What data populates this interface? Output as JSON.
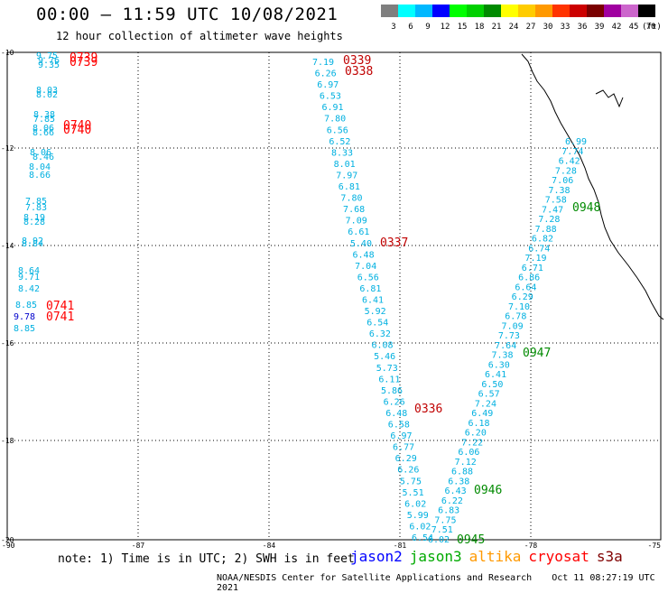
{
  "header": {
    "title": "00:00 – 11:59 UTC 10/08/2021",
    "subtitle": "12 hour collection of altimeter wave heights"
  },
  "color_scale": {
    "unit": "(ft)",
    "colors": [
      "#7f7f7f",
      "#00ffff",
      "#00b8ff",
      "#0000ff",
      "#00ff00",
      "#00d000",
      "#008a00",
      "#ffff00",
      "#ffcc00",
      "#ff9900",
      "#ff3300",
      "#cc0000",
      "#7a0000",
      "#a000a0",
      "#cc66cc",
      "#000000"
    ],
    "labels": [
      "3",
      "6",
      "9",
      "12",
      "15",
      "18",
      "21",
      "24",
      "27",
      "30",
      "33",
      "36",
      "39",
      "42",
      "45",
      "70"
    ]
  },
  "axes": {
    "x_ticks": [
      "-90",
      "-87",
      "-84",
      "-81",
      "-78",
      "-75"
    ],
    "y_ticks": [
      "-10",
      "-12",
      "-14",
      "-16",
      "-18",
      "-20"
    ]
  },
  "tracks": [
    {
      "sat": "cryosat",
      "color": "#c00000",
      "labels": [
        "0339",
        "0338",
        "0337",
        "0336"
      ]
    },
    {
      "sat": "jason3",
      "color": "#008a00",
      "labels": [
        "0948",
        "0947",
        "0946",
        "0945"
      ]
    },
    {
      "sat": "s3a",
      "color": "#ff0000",
      "labels": [
        "0739",
        "0739",
        "0740",
        "0740",
        "0741",
        "0741"
      ]
    }
  ],
  "waves": {
    "left": [
      "9.75",
      "9.76",
      "9.35",
      "8.03",
      "8.02",
      "8.38",
      "7.85",
      "8.06",
      "8.66",
      "8.06",
      "8.46",
      "8.04",
      "8.66",
      "7.85",
      "7.83",
      "8.19",
      "8.28",
      "8.92",
      "8.84",
      "8.64",
      "9.71",
      "8.42",
      "8.85",
      "9.78",
      "8.85"
    ],
    "mid": [
      "7.19",
      "6.26",
      "6.97",
      "6.53",
      "6.91",
      "7.80",
      "6.56",
      "6.52",
      "8.33",
      "8.01",
      "7.97",
      "6.81",
      "7.80",
      "7.68",
      "7.09",
      "6.61",
      "5.40",
      "6.48",
      "7.04",
      "6.56",
      "6.81",
      "6.41",
      "5.92",
      "6.54",
      "6.32",
      "6.08",
      "5.46",
      "5.73",
      "6.11",
      "5.86",
      "6.26",
      "6.48",
      "6.58",
      "6.97",
      "6.77",
      "6.29",
      "6.26",
      "5.75",
      "5.51",
      "6.02",
      "5.99",
      "6.02",
      "6.54"
    ],
    "right": [
      "6.99",
      "7.74",
      "6.42",
      "7.28",
      "7.06",
      "7.38",
      "7.58",
      "7.47",
      "7.28",
      "7.88",
      "6.82",
      "6.74",
      "7.19",
      "6.71",
      "6.86",
      "6.64",
      "6.29",
      "7.10",
      "6.78",
      "7.09",
      "7.73",
      "7.64",
      "7.38",
      "6.30",
      "6.41",
      "6.50",
      "6.57",
      "7.24",
      "6.49",
      "6.18",
      "6.20",
      "7.22",
      "6.06",
      "7.12",
      "6.88",
      "6.38",
      "6.43",
      "6.22",
      "6.83",
      "7.75",
      "7.51",
      "6.02"
    ]
  },
  "footer": {
    "note": "note: 1) Time is in UTC; 2) SWH is in feet",
    "legend": [
      {
        "name": "jason2",
        "color": "#0000ff"
      },
      {
        "name": "jason3",
        "color": "#00aa00"
      },
      {
        "name": "altika",
        "color": "#ff9900"
      },
      {
        "name": "cryosat",
        "color": "#ff0000"
      },
      {
        "name": "s3a",
        "color": "#800000"
      }
    ],
    "credit": "NOAA/NESDIS Center for Satellite Applications and Research",
    "timestamp": "Oct 11 08:27:19 UTC 2021"
  }
}
